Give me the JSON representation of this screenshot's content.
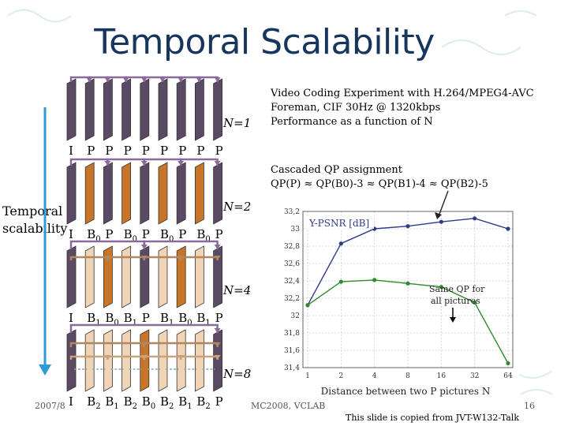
{
  "title": "Temporal Scalability",
  "experiment": {
    "line1": "Video Coding Experiment with H.264/MPEG4-AVC",
    "line2": "Foreman, CIF 30Hz @ 1320kbps",
    "line3": "Performance as a function of N"
  },
  "qp": {
    "line1": "Cascaded QP assignment",
    "line2": "QP(P) ≈ QP(B0)-3 ≈ QP(B1)-4 ≈ QP(B2)-5"
  },
  "side_label": {
    "line1": "Temporal",
    "line2": "scalability"
  },
  "rows": [
    {
      "n_label": "N=1",
      "frames": [
        {
          "base": "I",
          "sub": ""
        },
        {
          "base": "P",
          "sub": ""
        },
        {
          "base": "P",
          "sub": ""
        },
        {
          "base": "P",
          "sub": ""
        },
        {
          "base": "P",
          "sub": ""
        },
        {
          "base": "P",
          "sub": ""
        },
        {
          "base": "P",
          "sub": ""
        },
        {
          "base": "P",
          "sub": ""
        },
        {
          "base": "P",
          "sub": ""
        }
      ]
    },
    {
      "n_label": "N=2",
      "frames": [
        {
          "base": "I",
          "sub": ""
        },
        {
          "base": "B",
          "sub": "0"
        },
        {
          "base": "P",
          "sub": ""
        },
        {
          "base": "B",
          "sub": "0"
        },
        {
          "base": "P",
          "sub": ""
        },
        {
          "base": "B",
          "sub": "0"
        },
        {
          "base": "P",
          "sub": ""
        },
        {
          "base": "B",
          "sub": "0"
        },
        {
          "base": "P",
          "sub": ""
        }
      ]
    },
    {
      "n_label": "N=4",
      "frames": [
        {
          "base": "I",
          "sub": ""
        },
        {
          "base": "B",
          "sub": "1"
        },
        {
          "base": "B",
          "sub": "0"
        },
        {
          "base": "B",
          "sub": "1"
        },
        {
          "base": "P",
          "sub": ""
        },
        {
          "base": "B",
          "sub": "1"
        },
        {
          "base": "B",
          "sub": "0"
        },
        {
          "base": "B",
          "sub": "1"
        },
        {
          "base": "P",
          "sub": ""
        }
      ]
    },
    {
      "n_label": "N=8",
      "frames": [
        {
          "base": "I",
          "sub": ""
        },
        {
          "base": "B",
          "sub": "2"
        },
        {
          "base": "B",
          "sub": "1"
        },
        {
          "base": "B",
          "sub": "2"
        },
        {
          "base": "B",
          "sub": "0"
        },
        {
          "base": "B",
          "sub": "2"
        },
        {
          "base": "B",
          "sub": "1"
        },
        {
          "base": "B",
          "sub": "2"
        },
        {
          "base": "P",
          "sub": ""
        }
      ]
    }
  ],
  "chart_data": {
    "type": "line",
    "title": "",
    "legend_label": "Y-PSNR [dB]",
    "xlabel": "Distance between two P pictures N",
    "x": [
      1,
      2,
      4,
      8,
      16,
      32,
      64
    ],
    "x_ticks": [
      "1",
      "2",
      "4",
      "8",
      "16",
      "32",
      "64"
    ],
    "y_ticks": [
      "31,4",
      "31,6",
      "31,8",
      "32",
      "32,2",
      "32,4",
      "32,6",
      "32,8",
      "33",
      "33,2"
    ],
    "ylim": [
      31.4,
      33.2
    ],
    "grid": true,
    "series": [
      {
        "color": "#2e3a8c",
        "values": [
          32.12,
          32.83,
          33.0,
          33.03,
          33.08,
          33.12,
          33.0
        ]
      },
      {
        "color": "#2e8b2e",
        "values": [
          32.12,
          32.39,
          32.41,
          32.37,
          32.33,
          32.15,
          31.45
        ]
      }
    ],
    "annotation": {
      "line1": "Same QP for",
      "line2": "all pictures"
    }
  },
  "footer": {
    "date": "2007/8",
    "conf": "MC2008, VCLAB",
    "page": "16",
    "note": "This slide is copied from JVT-W132-Talk"
  },
  "colors": {
    "frame_dark": "#5a4a63",
    "frame_orange": "#c8752a",
    "frame_light": "#f1d3b5",
    "arrow_purple": "#8a6a9a",
    "arrow_tan": "#b08860",
    "axis_arrow": "#2e9ad6"
  }
}
